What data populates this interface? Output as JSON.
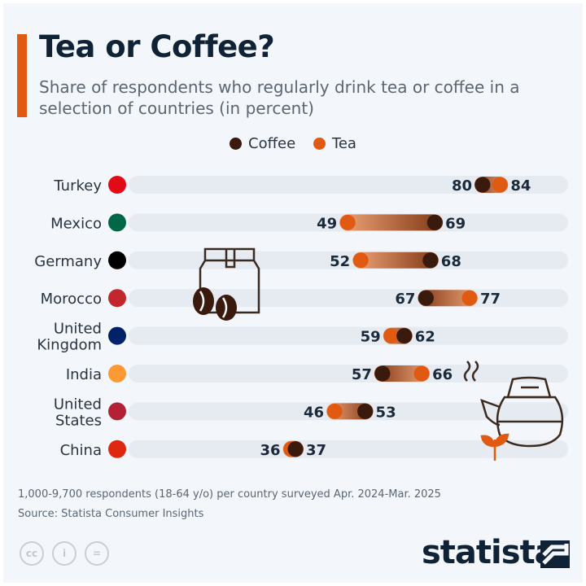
{
  "header": {
    "title": "Tea or Coffee?",
    "subtitle": "Share of respondents who regularly drink tea or coffee in a selection of countries (in percent)"
  },
  "colors": {
    "coffee": "#3a1a0c",
    "tea": "#e05a12",
    "accent": "#e05a12",
    "track": "#e6ebf2"
  },
  "chart_data": {
    "type": "dumbbell",
    "title": "Tea or Coffee?",
    "xlim": [
      0,
      100
    ],
    "legend": {
      "placement": "top",
      "entries": [
        "Coffee",
        "Tea"
      ]
    },
    "categories": [
      "Turkey",
      "Mexico",
      "Germany",
      "Morocco",
      "United Kingdom",
      "India",
      "United States",
      "China"
    ],
    "category_lines": [
      [
        "Turkey"
      ],
      [
        "Mexico"
      ],
      [
        "Germany"
      ],
      [
        "Morocco"
      ],
      [
        "United",
        "Kingdom"
      ],
      [
        "India"
      ],
      [
        "United",
        "States"
      ],
      [
        "China"
      ]
    ],
    "flags": [
      "turkey-flag",
      "mexico-flag",
      "germany-flag",
      "morocco-flag",
      "uk-flag",
      "india-flag",
      "usa-flag",
      "china-flag"
    ],
    "series": [
      {
        "name": "Coffee",
        "values": [
          80,
          69,
          68,
          67,
          62,
          57,
          53,
          37
        ]
      },
      {
        "name": "Tea",
        "values": [
          84,
          49,
          52,
          77,
          59,
          66,
          46,
          36
        ]
      }
    ]
  },
  "footer": {
    "note": "1,000-9,700 respondents (18-64 y/o) per country surveyed Apr. 2024-Mar. 2025",
    "source": "Source: Statista Consumer Insights",
    "cc": [
      "cc",
      "i",
      "="
    ],
    "logo": "statista"
  }
}
